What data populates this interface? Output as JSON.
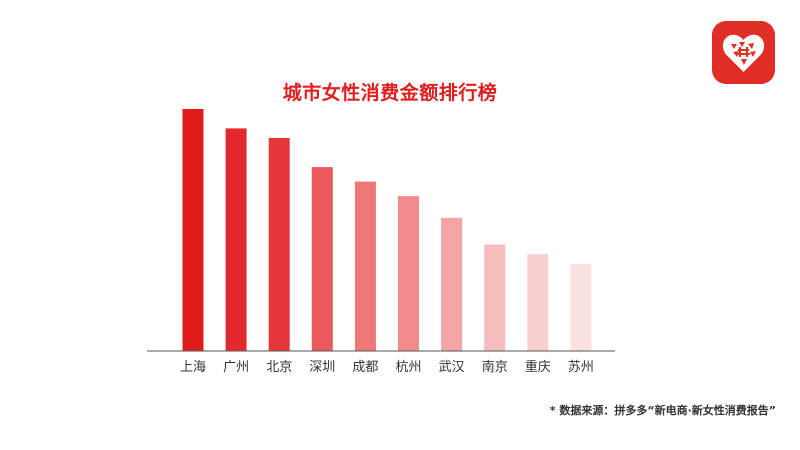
{
  "brand": {
    "accent": "#e02e24",
    "logo_icon": "pinduoduo-logo-icon"
  },
  "chart_data": {
    "type": "bar",
    "title": "城市女性消费金额排行榜",
    "categories": [
      "上海",
      "广州",
      "北京",
      "深圳",
      "成都",
      "杭州",
      "武汉",
      "南京",
      "重庆",
      "苏州"
    ],
    "values": [
      100,
      92,
      88,
      76,
      70,
      64,
      55,
      44,
      40,
      36
    ],
    "colors": [
      "#e01b1b",
      "#e3292d",
      "#e5363a",
      "#ea5a5c",
      "#ee7778",
      "#f18b8c",
      "#f4a4a5",
      "#f7bcbd",
      "#f9cfcf",
      "#fbe1e1"
    ],
    "ylim": [
      0,
      100
    ],
    "grid": false,
    "legend": "none"
  },
  "footnote": "* 数据来源：拼多多“新电商·新女性消费报告”"
}
